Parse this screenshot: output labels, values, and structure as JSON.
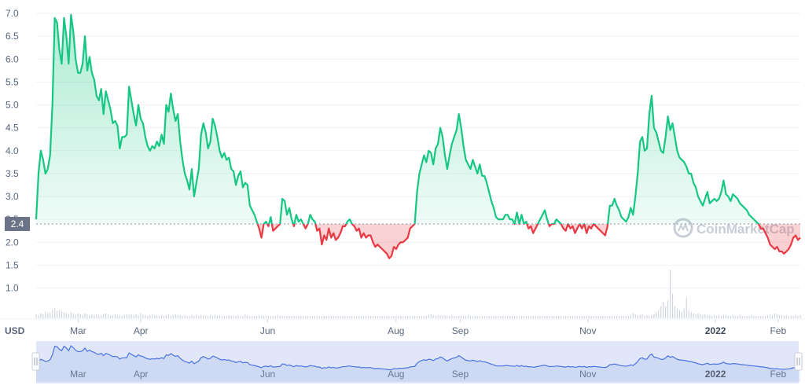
{
  "watermark": "CoinMarketCap",
  "chart_data": {
    "type": "area",
    "currency_label": "USD",
    "reference_value": 2.4,
    "reference_label": "2.4",
    "ylim": [
      0.7,
      7.0
    ],
    "yticks": [
      "1.0",
      "1.5",
      "2.0",
      "2.5",
      "3.0",
      "3.5",
      "4.0",
      "4.5",
      "5.0",
      "5.5",
      "6.0",
      "6.5",
      "7.0"
    ],
    "xticks": [
      {
        "label": "Mar",
        "t": 0.055,
        "bold": false
      },
      {
        "label": "Apr",
        "t": 0.137,
        "bold": false
      },
      {
        "label": "Jun",
        "t": 0.303,
        "bold": false
      },
      {
        "label": "Aug",
        "t": 0.471,
        "bold": false
      },
      {
        "label": "Sep",
        "t": 0.555,
        "bold": false
      },
      {
        "label": "Nov",
        "t": 0.722,
        "bold": false
      },
      {
        "label": "2022",
        "t": 0.889,
        "bold": true
      },
      {
        "label": "Feb",
        "t": 0.971,
        "bold": false
      }
    ],
    "colors": {
      "up": "#16c784",
      "down": "#ea3943",
      "volume": "#d0d5dd",
      "navigator": "#4b72e0"
    },
    "series": [
      {
        "values": [
          2.5,
          3.5,
          4.0,
          3.8,
          3.5,
          3.6,
          3.9,
          5.0,
          6.9,
          6.8,
          6.2,
          5.9,
          6.9,
          6.5,
          5.9,
          6.97,
          6.6,
          6.0,
          5.7,
          5.7,
          5.9,
          6.5,
          5.75,
          6.05,
          5.7,
          5.55,
          5.2,
          5.1,
          5.35,
          4.8,
          5.3,
          5.1,
          4.9,
          4.6,
          4.65,
          4.55,
          4.05,
          4.3,
          4.3,
          4.35,
          5.4,
          5.1,
          4.8,
          4.55,
          5.0,
          4.7,
          4.6,
          4.3,
          4.1,
          4.0,
          4.1,
          4.05,
          4.2,
          4.1,
          4.35,
          4.15,
          5.0,
          4.85,
          5.25,
          4.9,
          4.65,
          4.8,
          4.2,
          3.8,
          3.5,
          3.35,
          3.15,
          3.6,
          3.0,
          3.3,
          3.6,
          4.35,
          4.6,
          4.4,
          4.05,
          4.2,
          4.7,
          4.55,
          4.3,
          4.0,
          3.85,
          3.95,
          3.8,
          3.85,
          3.6,
          3.55,
          3.25,
          3.45,
          3.55,
          3.2,
          3.3,
          3.25,
          2.8,
          2.7,
          2.6,
          2.45,
          2.3,
          2.1,
          2.4,
          2.45,
          2.35,
          2.55,
          2.25,
          2.3,
          2.35,
          2.4,
          2.95,
          2.9,
          2.6,
          2.75,
          2.5,
          2.35,
          2.6,
          2.45,
          2.5,
          2.4,
          2.3,
          2.4,
          2.6,
          2.5,
          2.45,
          2.25,
          2.3,
          1.95,
          2.15,
          2.05,
          2.3,
          2.1,
          2.2,
          2.05,
          2.1,
          2.2,
          2.35,
          2.35,
          2.45,
          2.5,
          2.4,
          2.35,
          2.25,
          2.3,
          2.1,
          2.2,
          2.1,
          2.15,
          2.15,
          2.0,
          1.9,
          1.95,
          1.9,
          1.85,
          1.8,
          1.75,
          1.65,
          1.7,
          1.9,
          1.85,
          1.95,
          2.0,
          2.0,
          2.05,
          2.1,
          2.3,
          2.35,
          2.4,
          3.1,
          3.5,
          3.7,
          3.9,
          3.75,
          4.0,
          3.95,
          3.7,
          4.05,
          4.15,
          4.5,
          4.3,
          3.9,
          3.6,
          3.9,
          4.15,
          4.3,
          4.45,
          4.8,
          4.5,
          4.1,
          3.8,
          3.7,
          3.6,
          3.8,
          3.65,
          3.5,
          3.7,
          3.45,
          3.45,
          3.3,
          3.1,
          2.9,
          2.75,
          2.55,
          2.5,
          2.5,
          2.5,
          2.6,
          2.6,
          2.5,
          2.5,
          2.4,
          2.65,
          2.4,
          2.6,
          2.4,
          2.45,
          2.3,
          2.35,
          2.2,
          2.3,
          2.4,
          2.5,
          2.6,
          2.7,
          2.5,
          2.35,
          2.4,
          2.4,
          2.5,
          2.45,
          2.4,
          2.3,
          2.25,
          2.4,
          2.3,
          2.35,
          2.2,
          2.3,
          2.4,
          2.3,
          2.4,
          2.2,
          2.35,
          2.3,
          2.4,
          2.35,
          2.3,
          2.25,
          2.2,
          2.15,
          2.35,
          2.8,
          2.8,
          2.95,
          2.8,
          2.7,
          2.55,
          2.5,
          2.45,
          2.55,
          2.75,
          2.6,
          3.0,
          3.5,
          4.2,
          4.3,
          4.0,
          4.05,
          4.8,
          5.2,
          4.5,
          4.4,
          4.2,
          4.0,
          3.95,
          4.3,
          4.75,
          4.45,
          4.6,
          4.3,
          4.0,
          3.85,
          3.8,
          3.75,
          3.65,
          3.5,
          3.5,
          3.3,
          3.2,
          3.0,
          2.9,
          2.8,
          2.95,
          3.1,
          2.85,
          2.9,
          2.95,
          2.9,
          2.95,
          3.1,
          3.35,
          3.05,
          3.0,
          2.9,
          3.05,
          3.0,
          2.95,
          2.85,
          2.8,
          2.75,
          2.7,
          2.6,
          2.55,
          2.5,
          2.45,
          2.4,
          2.3,
          2.3,
          2.2,
          2.1,
          1.95,
          1.9,
          1.85,
          1.9,
          1.8,
          1.8,
          1.75,
          1.8,
          1.85,
          1.95,
          2.1,
          2.15,
          2.05,
          2.1
        ]
      }
    ],
    "volume": [
      0.05,
      0.04,
      0.06,
      0.05,
      0.08,
      0.06,
      0.07,
      0.1,
      0.12,
      0.09,
      0.1,
      0.08,
      0.07,
      0.06,
      0.05,
      0.07,
      0.06,
      0.05,
      0.06,
      0.05,
      0.04,
      0.06,
      0.05,
      0.04,
      0.05,
      0.04,
      0.05,
      0.04,
      0.04,
      0.05,
      0.06,
      0.05,
      0.04,
      0.04,
      0.05,
      0.04,
      0.04,
      0.03,
      0.04,
      0.05,
      0.04,
      0.05,
      0.04,
      0.05,
      0.04,
      0.06,
      0.04,
      0.04,
      0.03,
      0.04,
      0.05,
      0.04,
      0.04,
      0.03,
      0.04,
      0.03,
      0.04,
      0.05,
      0.03,
      0.04,
      0.05,
      0.04,
      0.04,
      0.03,
      0.04,
      0.03,
      0.03,
      0.04,
      0.03,
      0.04,
      0.03,
      0.04,
      0.04,
      0.03,
      0.03,
      0.04,
      0.03,
      0.04,
      0.03,
      0.04,
      0.03,
      0.03,
      0.03,
      0.04,
      0.03,
      0.03,
      0.03,
      0.04,
      0.03,
      0.03,
      0.05,
      0.04,
      0.03,
      0.03,
      0.03,
      0.03,
      0.04,
      0.03,
      0.03,
      0.03,
      0.03,
      0.03,
      0.03,
      0.03,
      0.04,
      0.03,
      0.03,
      0.03,
      0.03,
      0.03,
      0.03,
      0.03,
      0.03,
      0.03,
      0.03,
      0.03,
      0.03,
      0.03,
      0.03,
      0.03,
      0.03,
      0.03,
      0.03,
      0.03,
      0.03,
      0.03,
      0.03,
      0.03,
      0.03,
      0.03,
      0.03,
      0.03,
      0.03,
      0.03,
      0.03,
      0.03,
      0.03,
      0.03,
      0.03,
      0.03,
      0.03,
      0.03,
      0.03,
      0.03,
      0.03,
      0.03,
      0.03,
      0.03,
      0.03,
      0.03,
      0.03,
      0.03,
      0.03,
      0.03,
      0.03,
      0.03,
      0.03,
      0.03,
      0.03,
      0.03,
      0.03,
      0.03,
      0.03,
      0.03,
      0.03,
      0.03,
      0.03,
      0.03,
      0.03,
      0.04,
      0.05,
      0.04,
      0.03,
      0.04,
      0.04,
      0.03,
      0.04,
      0.03,
      0.03,
      0.04,
      0.03,
      0.03,
      0.03,
      0.03,
      0.03,
      0.03,
      0.04,
      0.03,
      0.03,
      0.03,
      0.03,
      0.03,
      0.03,
      0.03,
      0.03,
      0.03,
      0.03,
      0.03,
      0.03,
      0.03,
      0.03,
      0.03,
      0.03,
      0.03,
      0.03,
      0.03,
      0.03,
      0.03,
      0.03,
      0.03,
      0.03,
      0.03,
      0.03,
      0.03,
      0.03,
      0.03,
      0.03,
      0.03,
      0.03,
      0.03,
      0.03,
      0.03,
      0.03,
      0.03,
      0.03,
      0.03,
      0.03,
      0.03,
      0.03,
      0.03,
      0.03,
      0.03,
      0.03,
      0.03,
      0.03,
      0.03,
      0.03,
      0.03,
      0.03,
      0.03,
      0.03,
      0.03,
      0.03,
      0.03,
      0.03,
      0.03,
      0.03,
      0.03,
      0.03,
      0.03,
      0.03,
      0.03,
      0.03,
      0.03,
      0.03,
      0.03,
      0.04,
      0.06,
      0.05,
      0.04,
      0.04,
      0.05,
      0.03,
      0.04,
      0.03,
      0.04,
      0.05,
      0.08,
      0.1,
      0.15,
      0.2,
      0.15,
      0.22,
      0.6,
      0.3,
      0.15,
      0.12,
      0.1,
      0.08,
      0.12,
      0.25,
      0.1,
      0.08,
      0.06,
      0.05,
      0.06,
      0.05,
      0.04,
      0.05,
      0.04,
      0.04,
      0.03,
      0.04,
      0.03,
      0.04,
      0.03,
      0.04,
      0.04,
      0.03,
      0.03,
      0.04,
      0.03,
      0.03,
      0.04,
      0.03,
      0.03,
      0.03,
      0.03,
      0.04,
      0.03,
      0.03,
      0.03,
      0.03,
      0.03,
      0.03,
      0.04,
      0.05,
      0.04,
      0.06,
      0.05,
      0.04,
      0.04,
      0.03,
      0.04,
      0.03,
      0.03,
      0.03,
      0.04,
      0.03,
      0.04,
      0.03,
      0.03
    ]
  }
}
